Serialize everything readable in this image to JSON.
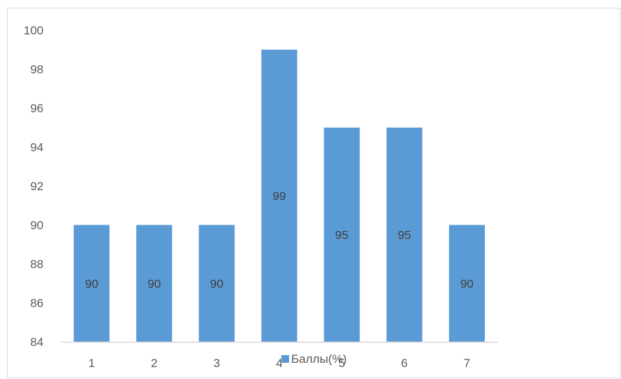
{
  "chart_data": {
    "type": "bar",
    "categories": [
      "1",
      "2",
      "3",
      "4",
      "5",
      "6",
      "7"
    ],
    "series": [
      {
        "name": "Баллы(%)",
        "values": [
          90,
          90,
          90,
          99,
          95,
          95,
          90
        ],
        "color": "#5b9bd5"
      }
    ],
    "ylim": [
      84,
      100
    ],
    "ytick_step": 2,
    "yticks": [
      "84",
      "86",
      "88",
      "90",
      "92",
      "94",
      "96",
      "98",
      "100"
    ],
    "data_labels": [
      "90",
      "90",
      "90",
      "99",
      "95",
      "95",
      "90"
    ],
    "grid": false,
    "legend_position": "bottom",
    "axis_color": "#d9d9d9",
    "tick_color": "#595959"
  }
}
